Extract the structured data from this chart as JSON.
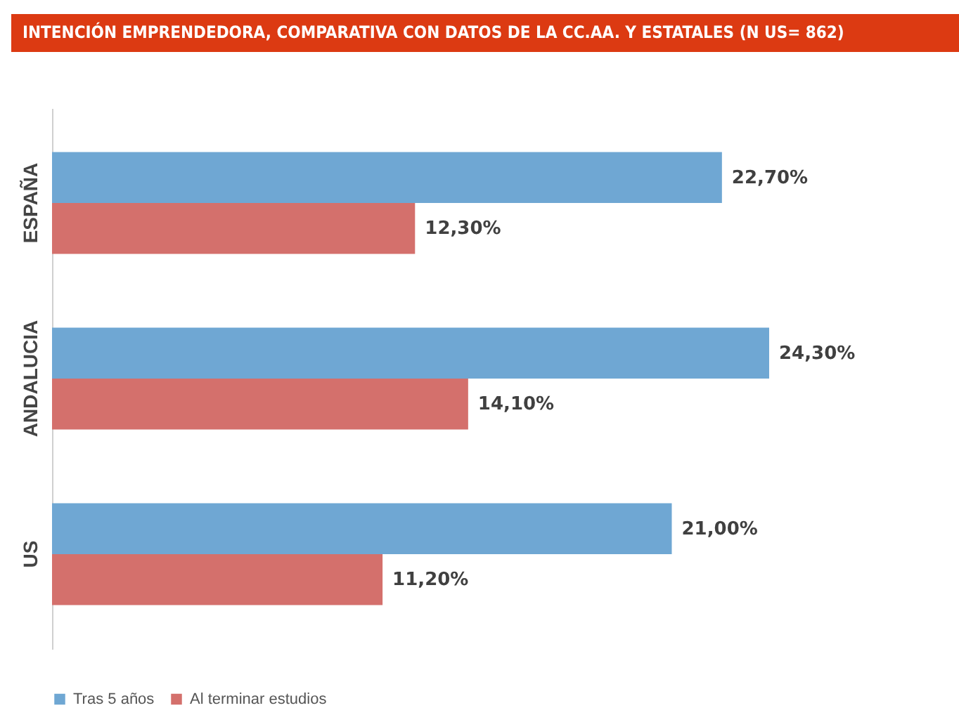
{
  "chart_data": {
    "type": "bar",
    "orientation": "horizontal",
    "title": "INTENCIÓN EMPRENDEDORA, COMPARATIVA CON DATOS DE LA CC.AA. Y ESTATALES (N US= 862)",
    "categories": [
      "ESPAÑA",
      "ANDALUCIA",
      "US"
    ],
    "series": [
      {
        "name": "Tras 5 años",
        "color": "#6fa7d3",
        "values": [
          22.7,
          24.3,
          21.0
        ],
        "value_labels": [
          "22,70%",
          "24,30%",
          "21,00%"
        ]
      },
      {
        "name": "Al terminar estudios",
        "color": "#d4706c",
        "values": [
          12.3,
          14.1,
          11.2
        ],
        "value_labels": [
          "12,30%",
          "14,10%",
          "11,20%"
        ]
      }
    ],
    "legend": "bottom"
  }
}
